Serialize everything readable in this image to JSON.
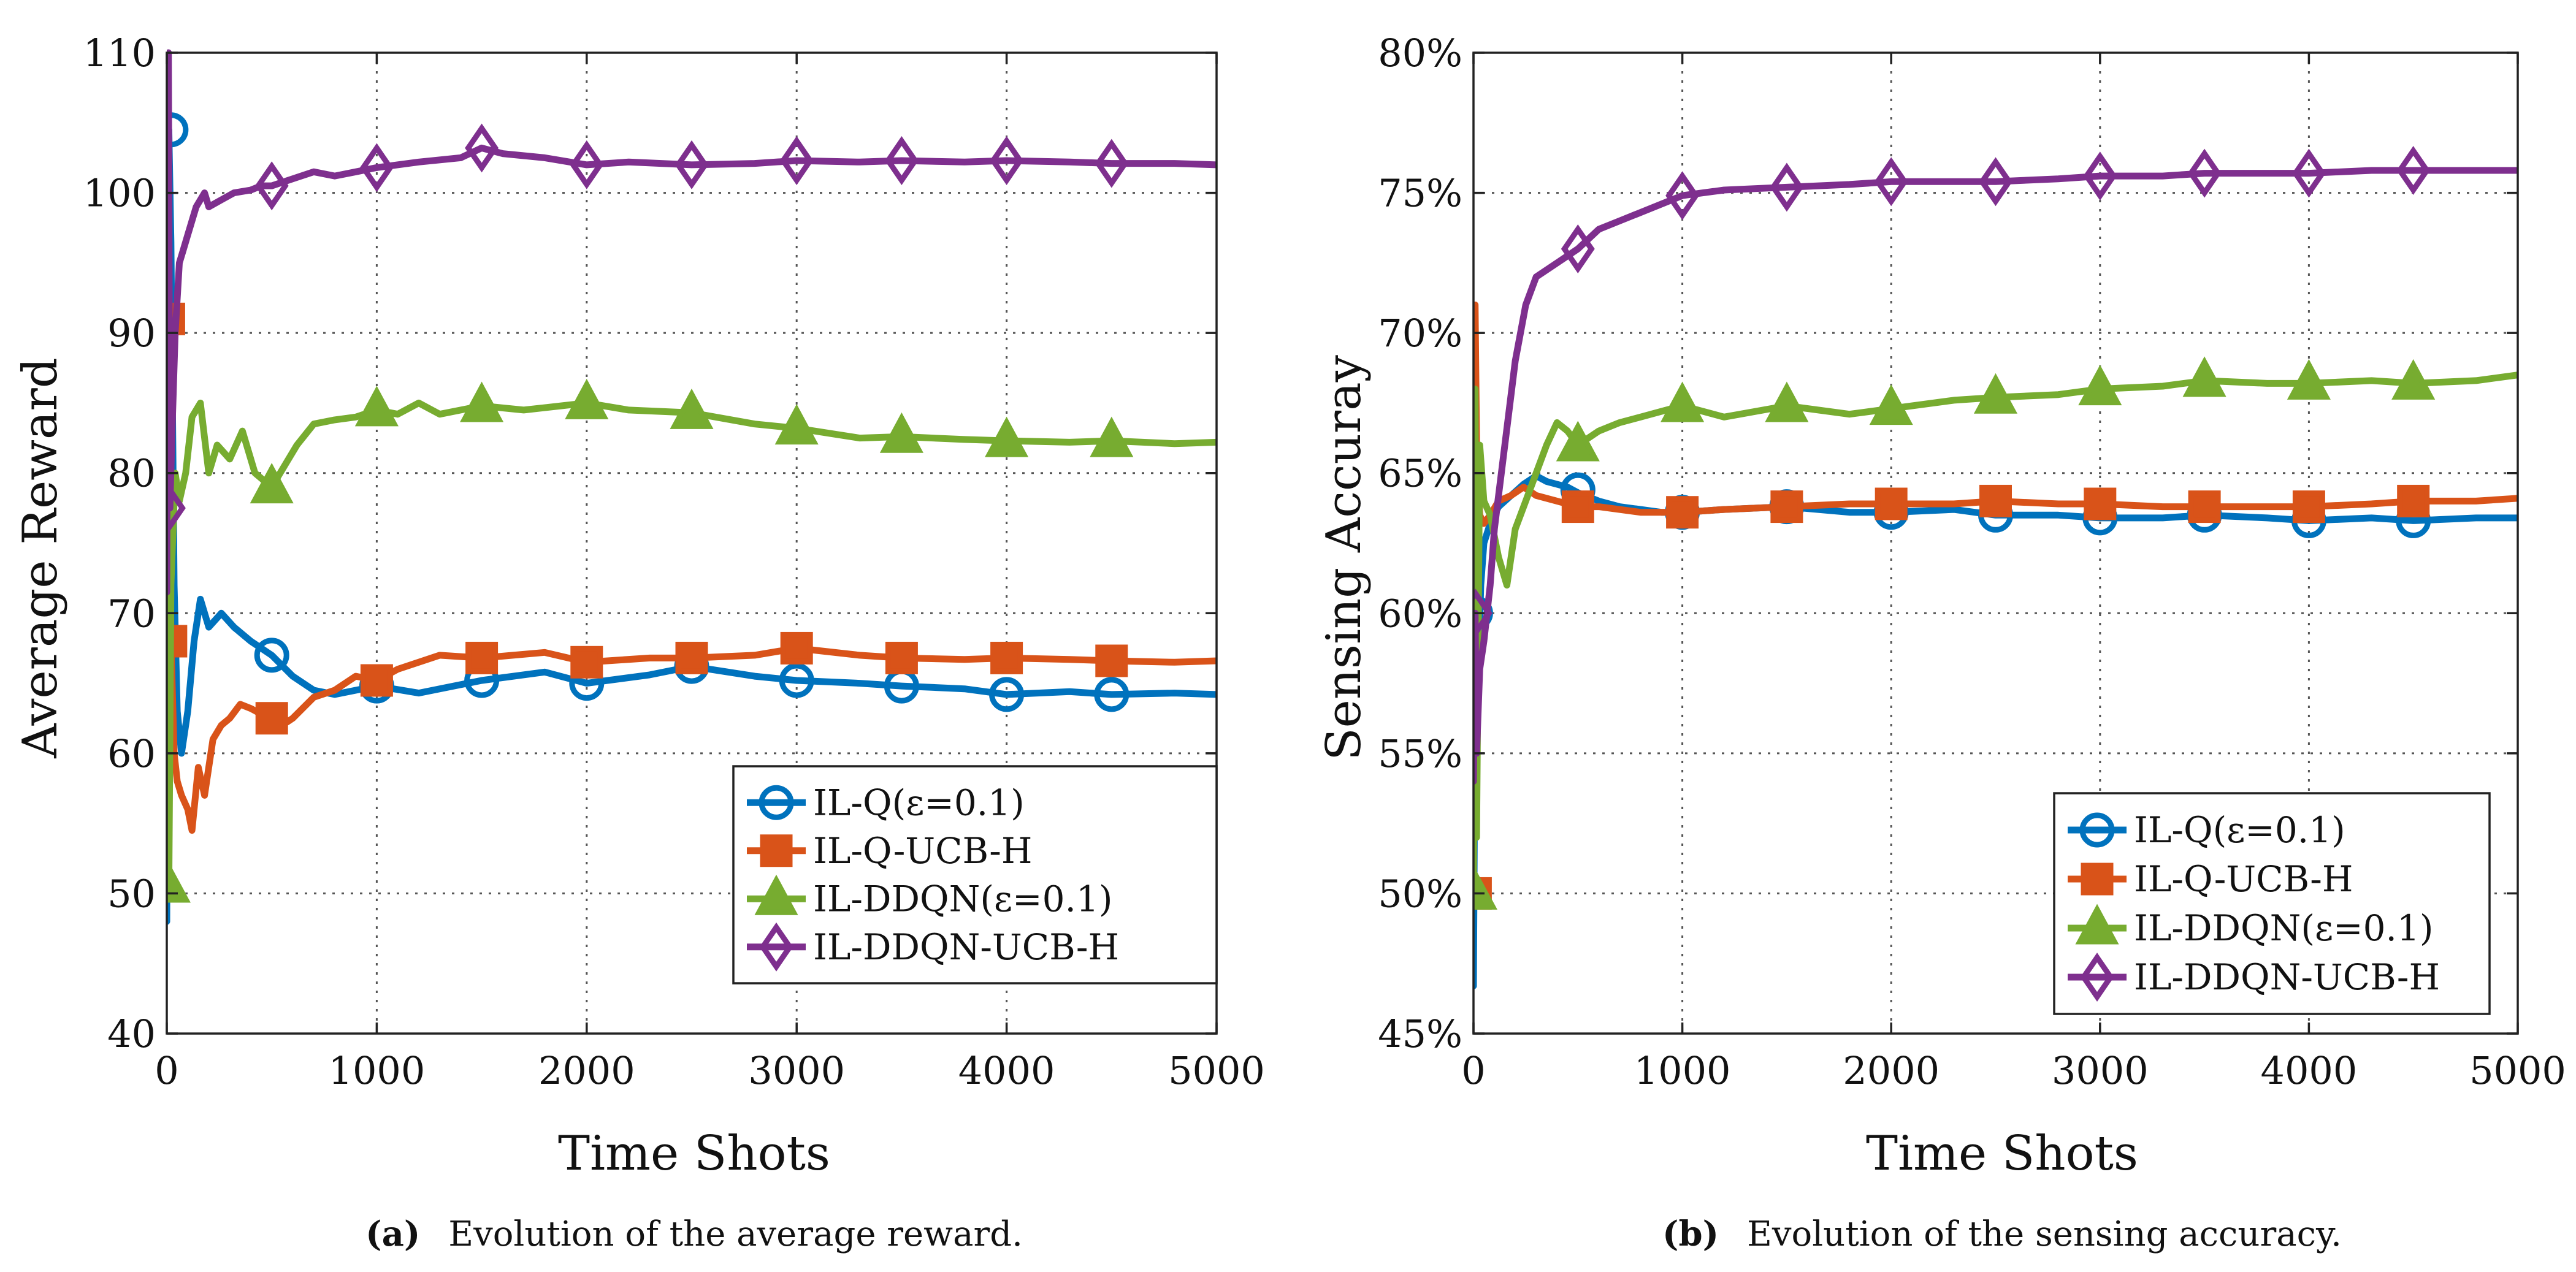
{
  "chart_data": [
    {
      "type": "line",
      "id": "a",
      "xlabel": "Time Shots",
      "ylabel": "Average Reward",
      "xlim": [
        0,
        5000
      ],
      "ylim": [
        40,
        110
      ],
      "xticks": [
        "0",
        "1000",
        "2000",
        "3000",
        "4000",
        "5000"
      ],
      "yticks": [
        "40",
        "50",
        "60",
        "70",
        "80",
        "90",
        "100",
        "110"
      ],
      "caption_label": "(a)",
      "caption_text": "Evolution of the average reward.",
      "legend_position": "lower-right",
      "series": [
        {
          "name": "IL-Q(ε=0.1)",
          "color": "#0072BD",
          "marker": "circle",
          "x": [
            0,
            10,
            20,
            35,
            50,
            70,
            100,
            130,
            160,
            200,
            260,
            320,
            400,
            450,
            500,
            600,
            700,
            800,
            900,
            1000,
            1200,
            1500,
            1800,
            2000,
            2300,
            2500,
            2800,
            3000,
            3300,
            3500,
            3800,
            4000,
            4300,
            4500,
            4800,
            5000
          ],
          "y": [
            48,
            104.5,
            96.5,
            72,
            63,
            60,
            63,
            68,
            71,
            69,
            70,
            69,
            68,
            67.5,
            67,
            65.5,
            64.5,
            64.2,
            64.5,
            64.8,
            64.3,
            65.2,
            65.8,
            65,
            65.6,
            66.2,
            65.5,
            65.2,
            65,
            64.8,
            64.6,
            64.2,
            64.4,
            64.2,
            64.3,
            64.2
          ],
          "markers_x": [
            20,
            500,
            1000,
            1500,
            2000,
            2500,
            3000,
            3500,
            4000,
            4500
          ],
          "markers_y": [
            104.5,
            67,
            64.8,
            65.2,
            65,
            66.2,
            65.2,
            64.8,
            64.2,
            64.2
          ]
        },
        {
          "name": "IL-Q-UCB-H",
          "color": "#D95319",
          "marker": "square",
          "x": [
            0,
            10,
            20,
            35,
            50,
            70,
            100,
            120,
            150,
            180,
            220,
            260,
            300,
            350,
            400,
            450,
            500,
            550,
            600,
            700,
            800,
            900,
            1000,
            1100,
            1300,
            1500,
            1800,
            2000,
            2300,
            2500,
            2800,
            3000,
            3300,
            3500,
            3800,
            4000,
            4300,
            4500,
            4800,
            5000
          ],
          "y": [
            68,
            91,
            68,
            60,
            58,
            57,
            56,
            54.5,
            59,
            57,
            61,
            62,
            62.5,
            63.5,
            63.2,
            62.8,
            62.5,
            62,
            62.5,
            64,
            64.5,
            65.5,
            65.2,
            66,
            67,
            66.8,
            67.2,
            66.5,
            66.8,
            66.8,
            67,
            67.5,
            67,
            66.8,
            66.7,
            66.8,
            66.7,
            66.6,
            66.5,
            66.6
          ],
          "markers_x": [
            10,
            20,
            500,
            1000,
            1500,
            2000,
            2500,
            3000,
            3500,
            4000,
            4500
          ],
          "markers_y": [
            91,
            68,
            62.5,
            65.2,
            66.8,
            66.5,
            66.8,
            67.5,
            66.8,
            66.8,
            66.6
          ]
        },
        {
          "name": "IL-DDQN(ε=0.1)",
          "color": "#77AC30",
          "marker": "triangle",
          "x": [
            0,
            10,
            20,
            40,
            60,
            90,
            120,
            160,
            200,
            240,
            300,
            360,
            420,
            500,
            560,
            620,
            700,
            800,
            900,
            1000,
            1100,
            1200,
            1300,
            1400,
            1500,
            1700,
            2000,
            2200,
            2500,
            2800,
            3000,
            3300,
            3500,
            3800,
            4000,
            4300,
            4500,
            4800,
            5000
          ],
          "y": [
            50.5,
            50.5,
            72,
            80,
            78,
            80,
            84,
            85,
            80,
            82,
            81,
            83,
            80,
            79,
            80.5,
            82,
            83.5,
            83.8,
            84,
            84.5,
            84.2,
            85,
            84.2,
            84.5,
            84.8,
            84.5,
            85,
            84.5,
            84.3,
            83.5,
            83.2,
            82.5,
            82.6,
            82.4,
            82.3,
            82.2,
            82.3,
            82.1,
            82.2
          ],
          "markers_x": [
            10,
            500,
            1000,
            1500,
            2000,
            2500,
            3000,
            3500,
            4000,
            4500
          ],
          "markers_y": [
            50.5,
            79,
            84.5,
            84.8,
            85,
            84.3,
            83.2,
            82.6,
            82.3,
            82.3
          ]
        },
        {
          "name": "IL-DDQN-UCB-H",
          "color": "#7E2F8E",
          "marker": "diamond",
          "x": [
            0,
            8,
            15,
            25,
            40,
            60,
            80,
            100,
            140,
            180,
            200,
            260,
            320,
            400,
            450,
            500,
            600,
            700,
            800,
            900,
            1000,
            1200,
            1400,
            1500,
            1600,
            1800,
            2000,
            2200,
            2500,
            2800,
            3000,
            3300,
            3500,
            3800,
            4000,
            4300,
            4500,
            4800,
            5000
          ],
          "y": [
            71.5,
            110,
            77.5,
            83,
            90,
            95,
            96,
            97,
            99,
            100,
            99,
            99.5,
            100,
            100.2,
            100.5,
            100.5,
            101,
            101.5,
            101.2,
            101.5,
            101.8,
            102.2,
            102.5,
            103.2,
            102.8,
            102.5,
            102,
            102.2,
            102,
            102.1,
            102.3,
            102.2,
            102.3,
            102.2,
            102.3,
            102.2,
            102.1,
            102.1,
            102
          ],
          "markers_x": [
            10,
            500,
            1000,
            1500,
            2000,
            2500,
            3000,
            3500,
            4000,
            4500
          ],
          "markers_y": [
            77.5,
            100.5,
            101.8,
            103.2,
            102,
            102,
            102.3,
            102.3,
            102.3,
            102.1
          ]
        }
      ]
    },
    {
      "type": "line",
      "id": "b",
      "xlabel": "Time Shots",
      "ylabel": "Sensing Accuray",
      "xlim": [
        0,
        5000
      ],
      "ylim": [
        45,
        80
      ],
      "xticks": [
        "0",
        "1000",
        "2000",
        "3000",
        "4000",
        "5000"
      ],
      "yticks": [
        "45%",
        "50%",
        "55%",
        "60%",
        "65%",
        "70%",
        "75%",
        "80%"
      ],
      "caption_label": "(b)",
      "caption_text": "Evolution of the sensing accuracy.",
      "legend_position": "lower-right",
      "series": [
        {
          "name": "IL-Q(ε=0.1)",
          "color": "#0072BD",
          "marker": "circle",
          "x": [
            0,
            10,
            20,
            35,
            50,
            80,
            120,
            180,
            240,
            300,
            350,
            400,
            450,
            500,
            600,
            700,
            800,
            900,
            1000,
            1200,
            1500,
            1800,
            2000,
            2300,
            2500,
            2800,
            3000,
            3300,
            3500,
            3800,
            4000,
            4300,
            4500,
            4800,
            5000
          ],
          "y": [
            46.7,
            60,
            57,
            61,
            62.5,
            63.2,
            63.8,
            64.2,
            64.6,
            64.9,
            64.7,
            64.6,
            64.5,
            64.3,
            64,
            63.8,
            63.7,
            63.6,
            63.6,
            63.7,
            63.8,
            63.6,
            63.6,
            63.7,
            63.5,
            63.5,
            63.4,
            63.4,
            63.5,
            63.4,
            63.3,
            63.4,
            63.3,
            63.4,
            63.4
          ],
          "markers_x": [
            10,
            500,
            1000,
            1500,
            2000,
            2500,
            3000,
            3500,
            4000,
            4500
          ],
          "markers_y": [
            60,
            64.4,
            63.6,
            63.8,
            63.6,
            63.5,
            63.4,
            63.5,
            63.3,
            63.3
          ]
        },
        {
          "name": "IL-Q-UCB-H",
          "color": "#D95319",
          "marker": "square",
          "x": [
            0,
            8,
            15,
            30,
            50,
            80,
            120,
            180,
            240,
            300,
            400,
            500,
            600,
            800,
            1000,
            1200,
            1500,
            1800,
            2000,
            2300,
            2500,
            2800,
            3000,
            3300,
            3500,
            3800,
            4000,
            4300,
            4500,
            4800,
            5000
          ],
          "y": [
            50,
            71,
            66,
            63.5,
            63.2,
            63.5,
            64,
            64.2,
            64.5,
            64.2,
            64,
            63.8,
            63.8,
            63.6,
            63.6,
            63.7,
            63.8,
            63.9,
            63.9,
            63.9,
            64,
            63.9,
            63.9,
            63.8,
            63.8,
            63.8,
            63.8,
            63.9,
            64,
            64,
            64.1
          ],
          "markers_x": [
            10,
            500,
            1000,
            1500,
            2000,
            2500,
            3000,
            3500,
            4000,
            4500
          ],
          "markers_y": [
            50,
            63.8,
            63.6,
            63.8,
            63.9,
            64,
            63.9,
            63.8,
            63.8,
            64
          ]
        },
        {
          "name": "IL-DDQN(ε=0.1)",
          "color": "#77AC30",
          "marker": "triangle",
          "x": [
            0,
            8,
            15,
            30,
            50,
            80,
            120,
            160,
            200,
            250,
            300,
            350,
            400,
            450,
            500,
            600,
            700,
            800,
            900,
            1000,
            1200,
            1500,
            1800,
            2000,
            2300,
            2500,
            2800,
            3000,
            3300,
            3500,
            3800,
            4000,
            4300,
            4500,
            4800,
            5000
          ],
          "y": [
            50,
            68,
            52,
            66,
            64,
            63.5,
            62,
            61,
            63,
            64,
            65,
            66,
            66.8,
            66.5,
            66,
            66.5,
            66.8,
            67,
            67.2,
            67.4,
            67,
            67.4,
            67.1,
            67.3,
            67.6,
            67.7,
            67.8,
            68,
            68.1,
            68.3,
            68.2,
            68.2,
            68.3,
            68.2,
            68.3,
            68.5
          ],
          "markers_x": [
            10,
            500,
            1000,
            1500,
            2000,
            2500,
            3000,
            3500,
            4000,
            4500
          ],
          "markers_y": [
            50,
            66,
            67.4,
            67.4,
            67.3,
            67.7,
            68,
            68.3,
            68.2,
            68.2
          ]
        },
        {
          "name": "IL-DDQN-UCB-H",
          "color": "#7E2F8E",
          "marker": "diamond",
          "x": [
            0,
            8,
            15,
            30,
            50,
            80,
            100,
            150,
            200,
            250,
            300,
            400,
            500,
            600,
            700,
            800,
            900,
            1000,
            1200,
            1500,
            1800,
            2000,
            2300,
            2500,
            2800,
            3000,
            3300,
            3500,
            3800,
            4000,
            4300,
            4500,
            4800,
            5000
          ],
          "y": [
            54,
            60,
            55,
            58,
            59,
            61,
            63,
            66,
            69,
            71,
            72,
            72.5,
            73,
            73.7,
            74,
            74.3,
            74.6,
            74.9,
            75.1,
            75.2,
            75.3,
            75.4,
            75.4,
            75.4,
            75.5,
            75.6,
            75.6,
            75.7,
            75.7,
            75.7,
            75.8,
            75.8,
            75.8,
            75.8
          ],
          "markers_x": [
            10,
            500,
            1000,
            1500,
            2000,
            2500,
            3000,
            3500,
            4000,
            4500
          ],
          "markers_y": [
            60,
            73,
            74.9,
            75.2,
            75.4,
            75.4,
            75.6,
            75.7,
            75.7,
            75.8
          ]
        }
      ]
    }
  ]
}
